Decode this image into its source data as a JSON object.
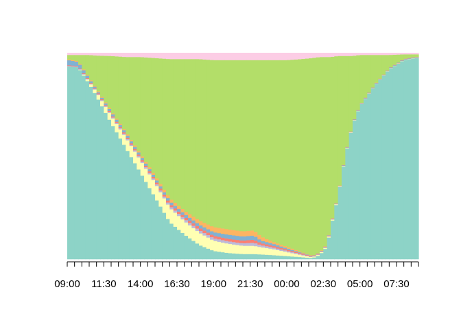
{
  "chart_data": {
    "type": "area",
    "stacked": true,
    "normalized": true,
    "title": "",
    "xlabel": "",
    "ylabel": "",
    "ylim": [
      0,
      1
    ],
    "y_axis_shown": false,
    "grid": false,
    "legend": "none",
    "time_step_minutes": 15,
    "x_start": "09:00",
    "x_tick_labels": [
      "09:00",
      "11:30",
      "14:00",
      "16:30",
      "19:00",
      "21:30",
      "00:00",
      "02:30",
      "05:00",
      "07:30"
    ],
    "x_label_every_ticks": 10,
    "series_colors": [
      "#8DD3C7",
      "#FFFFB3",
      "#BEBADA",
      "#FB8072",
      "#80B1D3",
      "#FDB462",
      "#B3DE69",
      "#FCCDE5"
    ],
    "key_points": [
      {
        "time": "09:00",
        "values": [
          0.935,
          0.0,
          0.003,
          0.003,
          0.025,
          0.004,
          0.02,
          0.01
        ]
      },
      {
        "time": "09:45",
        "values": [
          0.93,
          0.0,
          0.003,
          0.003,
          0.02,
          0.004,
          0.03,
          0.01
        ]
      },
      {
        "time": "10:30",
        "values": [
          0.85,
          0.01,
          0.003,
          0.003,
          0.01,
          0.004,
          0.11,
          0.01
        ]
      },
      {
        "time": "11:00",
        "values": [
          0.79,
          0.02,
          0.004,
          0.004,
          0.005,
          0.004,
          0.16,
          0.013
        ]
      },
      {
        "time": "12:00",
        "values": [
          0.66,
          0.035,
          0.005,
          0.005,
          0.01,
          0.005,
          0.265,
          0.015
        ]
      },
      {
        "time": "13:00",
        "values": [
          0.54,
          0.05,
          0.006,
          0.006,
          0.01,
          0.006,
          0.362,
          0.02
        ]
      },
      {
        "time": "14:00",
        "values": [
          0.42,
          0.06,
          0.007,
          0.007,
          0.01,
          0.007,
          0.469,
          0.02
        ]
      },
      {
        "time": "15:00",
        "values": [
          0.3,
          0.07,
          0.008,
          0.008,
          0.01,
          0.01,
          0.569,
          0.025
        ]
      },
      {
        "time": "16:00",
        "values": [
          0.18,
          0.07,
          0.01,
          0.01,
          0.012,
          0.014,
          0.674,
          0.03
        ]
      },
      {
        "time": "17:00",
        "values": [
          0.12,
          0.065,
          0.011,
          0.011,
          0.013,
          0.016,
          0.734,
          0.03
        ]
      },
      {
        "time": "18:00",
        "values": [
          0.07,
          0.06,
          0.012,
          0.012,
          0.015,
          0.02,
          0.781,
          0.03
        ]
      },
      {
        "time": "19:00",
        "values": [
          0.04,
          0.05,
          0.012,
          0.012,
          0.017,
          0.025,
          0.809,
          0.035
        ]
      },
      {
        "time": "20:00",
        "values": [
          0.03,
          0.045,
          0.012,
          0.012,
          0.02,
          0.026,
          0.82,
          0.035
        ]
      },
      {
        "time": "21:00",
        "values": [
          0.025,
          0.04,
          0.012,
          0.013,
          0.02,
          0.025,
          0.83,
          0.035
        ]
      },
      {
        "time": "21:45",
        "values": [
          0.025,
          0.04,
          0.015,
          0.015,
          0.02,
          0.025,
          0.825,
          0.035
        ]
      },
      {
        "time": "22:15",
        "values": [
          0.023,
          0.035,
          0.01,
          0.01,
          0.012,
          0.02,
          0.855,
          0.035
        ]
      },
      {
        "time": "23:00",
        "values": [
          0.02,
          0.03,
          0.008,
          0.008,
          0.01,
          0.01,
          0.879,
          0.035
        ]
      },
      {
        "time": "00:00",
        "values": [
          0.015,
          0.02,
          0.006,
          0.006,
          0.006,
          0.008,
          0.904,
          0.035
        ]
      },
      {
        "time": "01:00",
        "values": [
          0.01,
          0.01,
          0.004,
          0.004,
          0.003,
          0.004,
          0.935,
          0.03
        ]
      },
      {
        "time": "01:45",
        "values": [
          0.005,
          0.004,
          0.002,
          0.002,
          0.002,
          0.002,
          0.958,
          0.025
        ]
      },
      {
        "time": "02:15",
        "values": [
          0.02,
          0.005,
          0.002,
          0.002,
          0.002,
          0.002,
          0.947,
          0.02
        ]
      },
      {
        "time": "02:45",
        "values": [
          0.06,
          0.005,
          0.002,
          0.002,
          0.002,
          0.002,
          0.907,
          0.02
        ]
      },
      {
        "time": "03:00",
        "values": [
          0.15,
          0.005,
          0.002,
          0.002,
          0.002,
          0.002,
          0.817,
          0.02
        ]
      },
      {
        "time": "03:30",
        "values": [
          0.3,
          0.003,
          0.001,
          0.001,
          0.002,
          0.001,
          0.677,
          0.015
        ]
      },
      {
        "time": "04:00",
        "values": [
          0.5,
          0.002,
          0.001,
          0.001,
          0.002,
          0.001,
          0.478,
          0.015
        ]
      },
      {
        "time": "04:30",
        "values": [
          0.65,
          0.002,
          0.001,
          0.001,
          0.002,
          0.001,
          0.328,
          0.015
        ]
      },
      {
        "time": "05:00",
        "values": [
          0.74,
          0.001,
          0.001,
          0.001,
          0.002,
          0.001,
          0.244,
          0.01
        ]
      },
      {
        "time": "06:00",
        "values": [
          0.84,
          0.001,
          0.001,
          0.001,
          0.002,
          0.001,
          0.144,
          0.01
        ]
      },
      {
        "time": "07:00",
        "values": [
          0.92,
          0.001,
          0.001,
          0.001,
          0.002,
          0.001,
          0.064,
          0.01
        ]
      },
      {
        "time": "08:00",
        "values": [
          0.965,
          0.001,
          0.001,
          0.001,
          0.002,
          0.001,
          0.022,
          0.007
        ]
      },
      {
        "time": "08:45",
        "values": [
          0.975,
          0.001,
          0.001,
          0.001,
          0.002,
          0.001,
          0.012,
          0.007
        ]
      }
    ]
  }
}
